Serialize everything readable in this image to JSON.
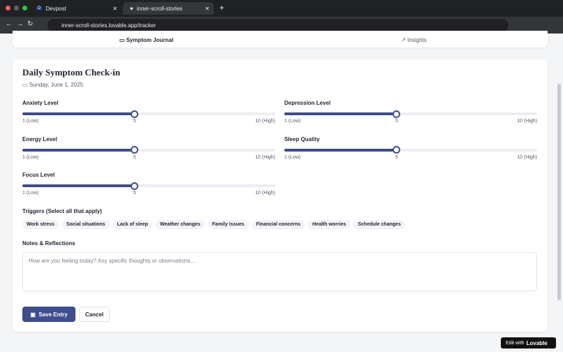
{
  "browser": {
    "tabs": [
      {
        "icon": "D",
        "title": "Devpost"
      },
      {
        "title": "inner-scroll-stories"
      }
    ],
    "url": "inner-scroll-stories.lovable.app/tracker"
  },
  "nav_tabs": [
    "Symptom Journal",
    "Insights"
  ],
  "form": {
    "title": "Daily Symptom Check-in",
    "date": "Sunday, June 1, 2025",
    "sliders": [
      {
        "label": "Anxiety Level",
        "value": 5,
        "min": {
          "value": 1,
          "label": "1 (Low)"
        },
        "max": {
          "value": 10,
          "label": "10 (High)"
        }
      },
      {
        "label": "Depression Level",
        "value": 5,
        "min": {
          "value": 1,
          "label": "1 (Low)"
        },
        "max": {
          "value": 10,
          "label": "10 (High)"
        }
      },
      {
        "label": "Energy Level",
        "value": 5,
        "min": {
          "value": 1,
          "label": "1 (Low)"
        },
        "max": {
          "value": 10,
          "label": "10 (High)"
        }
      },
      {
        "label": "Sleep Quality",
        "value": 5,
        "min": {
          "value": 1,
          "label": "1 (Low)"
        },
        "max": {
          "value": 10,
          "label": "10 (High)"
        }
      },
      {
        "label": "Focus Level",
        "value": 5,
        "min": {
          "value": 1,
          "label": "1 (Low)"
        },
        "max": {
          "value": 10,
          "label": "10 (High)"
        }
      }
    ],
    "triggers_label": "Triggers (Select all that apply)",
    "triggers": [
      "Work stress",
      "Social situations",
      "Lack of sleep",
      "Weather changes",
      "Family issues",
      "Financial concerns",
      "Health worries",
      "Schedule changes"
    ],
    "notes_label": "Notes & Reflections",
    "notes_placeholder": "How are you feeling today? Any specific thoughts or observations...",
    "save": "Save Entry",
    "cancel": "Cancel"
  },
  "badge": {
    "prefix": "Edit with",
    "brand": "Lovable"
  }
}
